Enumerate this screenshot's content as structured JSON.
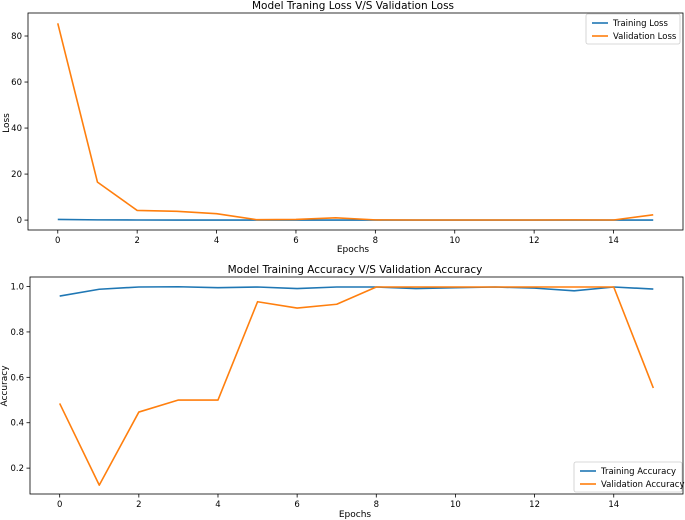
{
  "chart_data": [
    {
      "type": "line",
      "title": "Model Traning Loss V/S Validation Loss",
      "xlabel": "Epochs",
      "ylabel": "Loss",
      "xlim": [
        -0.75,
        15.75
      ],
      "ylim": [
        -4.3,
        90
      ],
      "xticks": [
        0,
        2,
        4,
        6,
        8,
        10,
        12,
        14
      ],
      "yticks": [
        0,
        20,
        40,
        60,
        80
      ],
      "legend": "top-right",
      "x": [
        0,
        1,
        2,
        3,
        4,
        5,
        6,
        7,
        8,
        9,
        10,
        11,
        12,
        13,
        14,
        15
      ],
      "series": [
        {
          "name": "Training Loss",
          "color": "#1f77b4",
          "values": [
            0.3,
            0.1,
            0.05,
            0.03,
            0.02,
            0.02,
            0.03,
            0.02,
            0.01,
            0.01,
            0.01,
            0.01,
            0.01,
            0.02,
            0.01,
            0.03
          ]
        },
        {
          "name": "Validation Loss",
          "color": "#ff7f0e",
          "values": [
            85.5,
            16.5,
            4.2,
            3.8,
            2.8,
            0.2,
            0.3,
            1.0,
            0.1,
            0.05,
            0.05,
            0.05,
            0.05,
            0.1,
            0.05,
            2.3
          ]
        }
      ]
    },
    {
      "type": "line",
      "title": "Model Training Accuracy V/S Validation Accuracy",
      "xlabel": "Epochs",
      "ylabel": "Accuracy",
      "xlim": [
        -0.75,
        15.75
      ],
      "ylim": [
        0.086,
        1.042
      ],
      "xticks": [
        0,
        2,
        4,
        6,
        8,
        10,
        12,
        14
      ],
      "yticks": [
        0.2,
        0.4,
        0.6,
        0.8,
        1.0
      ],
      "ytick_labels": [
        "0.2",
        "0.4",
        "0.6",
        "0.8",
        "1.0"
      ],
      "legend": "bottom-right",
      "x": [
        0,
        1,
        2,
        3,
        4,
        5,
        6,
        7,
        8,
        9,
        10,
        11,
        12,
        13,
        14,
        15
      ],
      "series": [
        {
          "name": "Training Accuracy",
          "color": "#1f77b4",
          "values": [
            0.958,
            0.988,
            0.998,
            0.999,
            0.995,
            0.998,
            0.991,
            0.998,
            0.998,
            0.991,
            0.995,
            0.998,
            0.993,
            0.981,
            0.998,
            0.989
          ]
        },
        {
          "name": "Validation Accuracy",
          "color": "#ff7f0e",
          "values": [
            0.485,
            0.125,
            0.447,
            0.5,
            0.5,
            0.933,
            0.905,
            0.922,
            0.998,
            0.998,
            0.998,
            0.998,
            0.998,
            0.998,
            0.998,
            0.553
          ]
        }
      ]
    }
  ]
}
